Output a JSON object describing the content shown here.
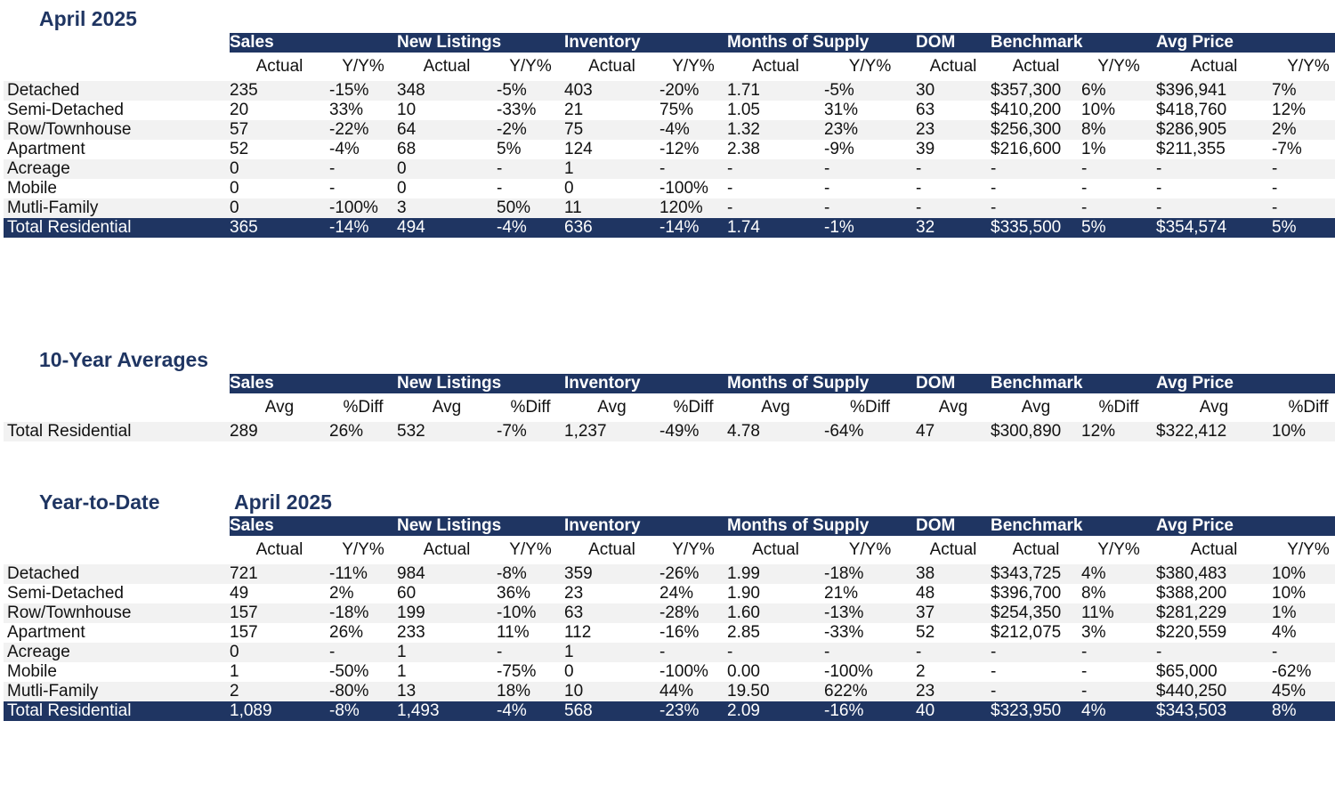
{
  "groups": [
    "Sales",
    "New Listings",
    "Inventory",
    "Months of Supply",
    "DOM",
    "Benchmark",
    "Avg Price"
  ],
  "section1": {
    "title": "April 2025",
    "subheaders": [
      "Actual",
      "Y/Y%",
      "Actual",
      "Y/Y%",
      "Actual",
      "Y/Y%",
      "Actual",
      "Y/Y%",
      "Actual",
      "Actual",
      "Y/Y%",
      "Actual",
      "Y/Y%"
    ],
    "rows": [
      {
        "label": "Detached",
        "values": [
          "235",
          "-15%",
          "348",
          "-5%",
          "403",
          "-20%",
          "1.71",
          "-5%",
          "30",
          "$357,300",
          "6%",
          "$396,941",
          "7%"
        ]
      },
      {
        "label": "Semi-Detached",
        "values": [
          "20",
          "33%",
          "10",
          "-33%",
          "21",
          "75%",
          "1.05",
          "31%",
          "63",
          "$410,200",
          "10%",
          "$418,760",
          "12%"
        ]
      },
      {
        "label": "Row/Townhouse",
        "values": [
          "57",
          "-22%",
          "64",
          "-2%",
          "75",
          "-4%",
          "1.32",
          "23%",
          "23",
          "$256,300",
          "8%",
          "$286,905",
          "2%"
        ]
      },
      {
        "label": "Apartment",
        "values": [
          "52",
          "-4%",
          "68",
          "5%",
          "124",
          "-12%",
          "2.38",
          "-9%",
          "39",
          "$216,600",
          "1%",
          "$211,355",
          "-7%"
        ]
      },
      {
        "label": "Acreage",
        "values": [
          "0",
          "-",
          "0",
          "-",
          "1",
          "-",
          "-",
          "-",
          "-",
          "-",
          "-",
          "-",
          "-"
        ]
      },
      {
        "label": "Mobile",
        "values": [
          "0",
          "-",
          "0",
          "-",
          "0",
          "-100%",
          "-",
          "-",
          "-",
          "-",
          "-",
          "-",
          "-"
        ]
      },
      {
        "label": "Mutli-Family",
        "values": [
          "0",
          "-100%",
          "3",
          "50%",
          "11",
          "120%",
          "-",
          "-",
          "-",
          "-",
          "-",
          "-",
          "-"
        ]
      }
    ],
    "total": {
      "label": "Total Residential",
      "values": [
        "365",
        "-14%",
        "494",
        "-4%",
        "636",
        "-14%",
        "1.74",
        "-1%",
        "32",
        "$335,500",
        "5%",
        "$354,574",
        "5%"
      ]
    }
  },
  "section2": {
    "title": "10-Year Averages",
    "subheaders": [
      "Avg",
      "%Diff",
      "Avg",
      "%Diff",
      "Avg",
      "%Diff",
      "Avg",
      "%Diff",
      "Avg",
      "Avg",
      "%Diff",
      "Avg",
      "%Diff"
    ],
    "rows": [
      {
        "label": "Total Residential",
        "values": [
          "289",
          "26%",
          "532",
          "-7%",
          "1,237",
          "-49%",
          "4.78",
          "-64%",
          "47",
          "$300,890",
          "12%",
          "$322,412",
          "10%"
        ]
      }
    ]
  },
  "section3": {
    "title": "Year-to-Date",
    "period": "April 2025",
    "subheaders": [
      "Actual",
      "Y/Y%",
      "Actual",
      "Y/Y%",
      "Actual",
      "Y/Y%",
      "Actual",
      "Y/Y%",
      "Actual",
      "Actual",
      "Y/Y%",
      "Actual",
      "Y/Y%"
    ],
    "rows": [
      {
        "label": "Detached",
        "values": [
          "721",
          "-11%",
          "984",
          "-8%",
          "359",
          "-26%",
          "1.99",
          "-18%",
          "38",
          "$343,725",
          "4%",
          "$380,483",
          "10%"
        ]
      },
      {
        "label": "Semi-Detached",
        "values": [
          "49",
          "2%",
          "60",
          "36%",
          "23",
          "24%",
          "1.90",
          "21%",
          "48",
          "$396,700",
          "8%",
          "$388,200",
          "10%"
        ]
      },
      {
        "label": "Row/Townhouse",
        "values": [
          "157",
          "-18%",
          "199",
          "-10%",
          "63",
          "-28%",
          "1.60",
          "-13%",
          "37",
          "$254,350",
          "11%",
          "$281,229",
          "1%"
        ]
      },
      {
        "label": "Apartment",
        "values": [
          "157",
          "26%",
          "233",
          "11%",
          "112",
          "-16%",
          "2.85",
          "-33%",
          "52",
          "$212,075",
          "3%",
          "$220,559",
          "4%"
        ]
      },
      {
        "label": "Acreage",
        "values": [
          "0",
          "-",
          "1",
          "-",
          "1",
          "-",
          "-",
          "-",
          "-",
          "-",
          "-",
          "-",
          "-"
        ]
      },
      {
        "label": "Mobile",
        "values": [
          "1",
          "-50%",
          "1",
          "-75%",
          "0",
          "-100%",
          "0.00",
          "-100%",
          "2",
          "-",
          "-",
          "$65,000",
          "-62%"
        ]
      },
      {
        "label": "Mutli-Family",
        "values": [
          "2",
          "-80%",
          "13",
          "18%",
          "10",
          "44%",
          "19.50",
          "622%",
          "23",
          "-",
          "-",
          "$440,250",
          "45%"
        ]
      }
    ],
    "total": {
      "label": "Total Residential",
      "values": [
        "1,089",
        "-8%",
        "1,493",
        "-4%",
        "568",
        "-23%",
        "2.09",
        "-16%",
        "40",
        "$323,950",
        "4%",
        "$343,503",
        "8%"
      ]
    }
  }
}
